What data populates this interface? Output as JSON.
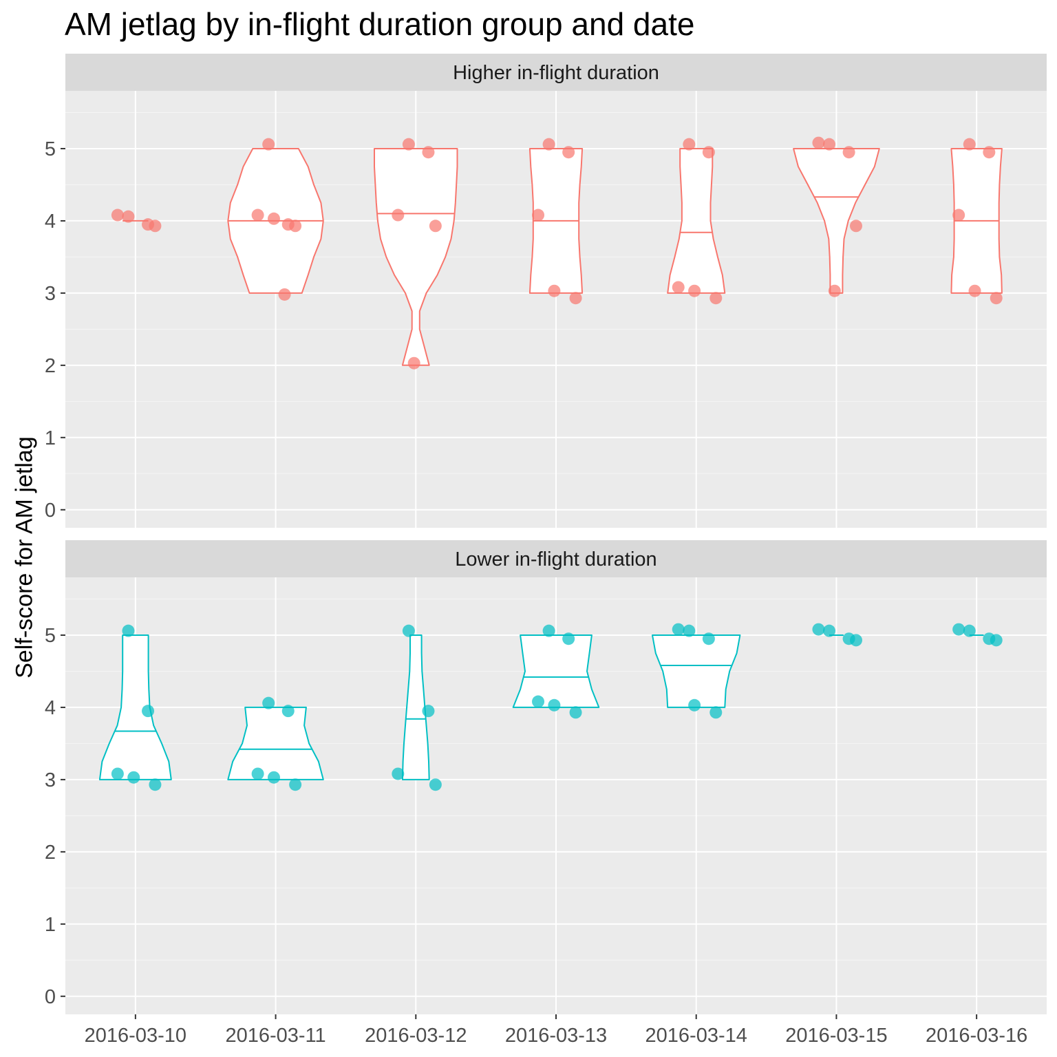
{
  "title": "AM jetlag by in-flight duration group and date",
  "chart_data": {
    "type": "violin",
    "title": "AM jetlag by in-flight duration group and date",
    "xlabel": "",
    "ylabel": "Self-score for AM jetlag",
    "categories": [
      "2016-03-10",
      "2016-03-11",
      "2016-03-12",
      "2016-03-13",
      "2016-03-14",
      "2016-03-15",
      "2016-03-16"
    ],
    "ylim": [
      -0.25,
      5.8
    ],
    "yticks": [
      0,
      1,
      2,
      3,
      4,
      5
    ],
    "grid": true,
    "legend": "none",
    "panels": [
      {
        "name": "Higher in-flight duration",
        "color": "#F8766D",
        "points": [
          [
            [
              4,
              4,
              4,
              4
            ]
          ],
          [
            [
              5,
              4,
              4,
              4,
              4,
              3
            ]
          ],
          [
            [
              5,
              5,
              4,
              4,
              2
            ]
          ],
          [
            [
              5,
              5,
              4,
              3,
              3
            ]
          ],
          [
            [
              5,
              5,
              3,
              3,
              3
            ]
          ],
          [
            [
              5,
              5,
              5,
              4,
              3
            ]
          ],
          [
            [
              5,
              5,
              4,
              3,
              3
            ]
          ]
        ],
        "violins": [
          {
            "median": 4.0,
            "profile": [
              [
                4.0,
                0.27
              ]
            ]
          },
          {
            "median": 4.0,
            "profile": [
              [
                3.0,
                0.55
              ],
              [
                3.25,
                0.68
              ],
              [
                3.5,
                0.8
              ],
              [
                3.75,
                0.95
              ],
              [
                4.0,
                1.0
              ],
              [
                4.25,
                0.95
              ],
              [
                4.5,
                0.8
              ],
              [
                4.75,
                0.68
              ],
              [
                5.0,
                0.48
              ]
            ]
          },
          {
            "median": 4.1,
            "profile": [
              [
                2.0,
                0.28
              ],
              [
                2.25,
                0.18
              ],
              [
                2.5,
                0.08
              ],
              [
                2.75,
                0.08
              ],
              [
                3.0,
                0.22
              ],
              [
                3.25,
                0.45
              ],
              [
                3.5,
                0.62
              ],
              [
                3.75,
                0.74
              ],
              [
                4.0,
                0.8
              ],
              [
                4.25,
                0.83
              ],
              [
                4.5,
                0.85
              ],
              [
                4.75,
                0.87
              ],
              [
                5.0,
                0.87
              ]
            ]
          },
          {
            "median": 4.0,
            "profile": [
              [
                3.0,
                0.55
              ],
              [
                3.25,
                0.53
              ],
              [
                3.5,
                0.5
              ],
              [
                3.75,
                0.48
              ],
              [
                4.0,
                0.48
              ],
              [
                4.25,
                0.48
              ],
              [
                4.5,
                0.5
              ],
              [
                4.75,
                0.53
              ],
              [
                5.0,
                0.55
              ]
            ]
          },
          {
            "median": 3.84,
            "profile": [
              [
                3.0,
                0.6
              ],
              [
                3.25,
                0.55
              ],
              [
                3.5,
                0.45
              ],
              [
                3.75,
                0.36
              ],
              [
                4.0,
                0.3
              ],
              [
                4.25,
                0.3
              ],
              [
                4.5,
                0.32
              ],
              [
                4.75,
                0.34
              ],
              [
                5.0,
                0.34
              ]
            ]
          },
          {
            "median": 4.33,
            "profile": [
              [
                3.0,
                0.13
              ],
              [
                3.25,
                0.13
              ],
              [
                3.5,
                0.14
              ],
              [
                3.75,
                0.16
              ],
              [
                4.0,
                0.25
              ],
              [
                4.25,
                0.4
              ],
              [
                4.5,
                0.6
              ],
              [
                4.75,
                0.8
              ],
              [
                5.0,
                0.9
              ]
            ]
          },
          {
            "median": 4.0,
            "profile": [
              [
                3.0,
                0.53
              ],
              [
                3.25,
                0.52
              ],
              [
                3.5,
                0.48
              ],
              [
                3.75,
                0.47
              ],
              [
                4.0,
                0.47
              ],
              [
                4.25,
                0.47
              ],
              [
                4.5,
                0.48
              ],
              [
                4.75,
                0.5
              ],
              [
                5.0,
                0.53
              ]
            ]
          }
        ]
      },
      {
        "name": "Lower in-flight duration",
        "color": "#00BFC4",
        "points": [
          [
            [
              5,
              4,
              3,
              3,
              3
            ]
          ],
          [
            [
              4,
              4,
              3,
              3,
              3
            ]
          ],
          [
            [
              5,
              4,
              3,
              3
            ]
          ],
          [
            [
              5,
              5,
              4,
              4,
              4
            ]
          ],
          [
            [
              5,
              5,
              5,
              4,
              4
            ]
          ],
          [
            [
              5,
              5,
              5,
              5
            ]
          ],
          [
            [
              5,
              5,
              5,
              5
            ]
          ]
        ],
        "violins": [
          {
            "median": 3.67,
            "profile": [
              [
                3.0,
                0.75
              ],
              [
                3.25,
                0.7
              ],
              [
                3.5,
                0.55
              ],
              [
                3.75,
                0.38
              ],
              [
                4.0,
                0.3
              ],
              [
                4.25,
                0.28
              ],
              [
                4.5,
                0.27
              ],
              [
                4.75,
                0.27
              ],
              [
                5.0,
                0.27
              ]
            ]
          },
          {
            "median": 3.42,
            "profile": [
              [
                3.0,
                1.0
              ],
              [
                3.25,
                0.9
              ],
              [
                3.5,
                0.7
              ],
              [
                3.75,
                0.6
              ],
              [
                4.0,
                0.64
              ]
            ]
          },
          {
            "median": 3.84,
            "profile": [
              [
                3.0,
                0.28
              ],
              [
                3.25,
                0.27
              ],
              [
                3.5,
                0.25
              ],
              [
                3.75,
                0.22
              ],
              [
                4.0,
                0.19
              ],
              [
                4.25,
                0.16
              ],
              [
                4.5,
                0.13
              ],
              [
                4.75,
                0.12
              ],
              [
                5.0,
                0.12
              ]
            ]
          },
          {
            "median": 4.42,
            "profile": [
              [
                4.0,
                0.9
              ],
              [
                4.25,
                0.75
              ],
              [
                4.5,
                0.65
              ],
              [
                4.75,
                0.7
              ],
              [
                5.0,
                0.75
              ]
            ]
          },
          {
            "median": 4.58,
            "profile": [
              [
                4.0,
                0.6
              ],
              [
                4.25,
                0.62
              ],
              [
                4.5,
                0.7
              ],
              [
                4.75,
                0.85
              ],
              [
                5.0,
                0.92
              ]
            ]
          },
          {
            "median": 5.0,
            "profile": [
              [
                5.0,
                0.15
              ]
            ]
          },
          {
            "median": 5.0,
            "profile": [
              [
                5.0,
                0.15
              ]
            ]
          }
        ]
      }
    ]
  }
}
